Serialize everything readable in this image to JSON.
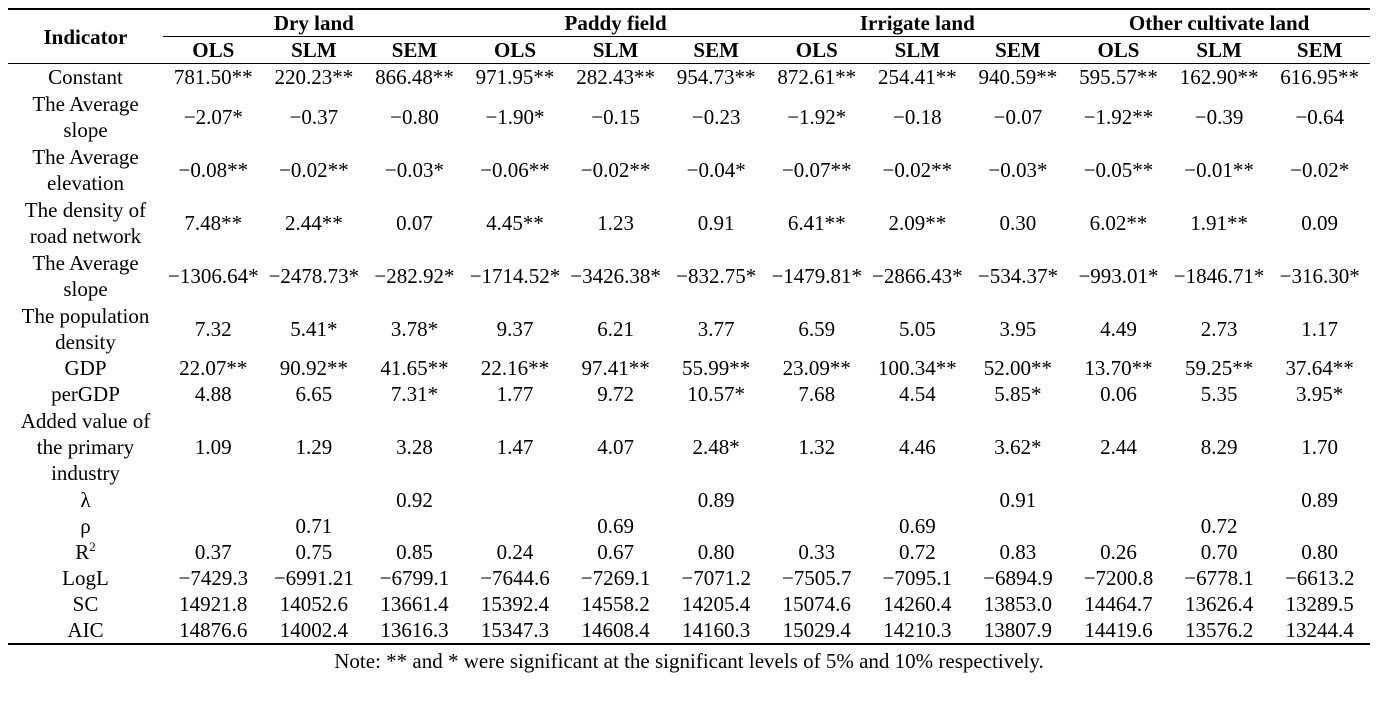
{
  "table": {
    "indicator_header": "Indicator",
    "groups": [
      "Dry land",
      "Paddy field",
      "Irrigate land",
      "Other cultivate land"
    ],
    "methods": [
      "OLS",
      "SLM",
      "SEM"
    ],
    "rows": [
      {
        "label": "Constant",
        "cells": [
          "781.50**",
          "220.23**",
          "866.48**",
          "971.95**",
          "282.43**",
          "954.73**",
          "872.61**",
          "254.41**",
          "940.59**",
          "595.57**",
          "162.90**",
          "616.95**"
        ]
      },
      {
        "label": "The Average slope",
        "cells": [
          "−2.07*",
          "−0.37",
          "−0.80",
          "−1.90*",
          "−0.15",
          "−0.23",
          "−1.92*",
          "−0.18",
          "−0.07",
          "−1.92**",
          "−0.39",
          "−0.64"
        ]
      },
      {
        "label": "The Average elevation",
        "cells": [
          "−0.08**",
          "−0.02**",
          "−0.03*",
          "−0.06**",
          "−0.02**",
          "−0.04*",
          "−0.07**",
          "−0.02**",
          "−0.03*",
          "−0.05**",
          "−0.01**",
          "−0.02*"
        ]
      },
      {
        "label": "The density of road network",
        "cells": [
          "7.48**",
          "2.44**",
          "0.07",
          "4.45**",
          "1.23",
          "0.91",
          "6.41**",
          "2.09**",
          "0.30",
          "6.02**",
          "1.91**",
          "0.09"
        ]
      },
      {
        "label": "The Average slope",
        "cells": [
          "−1306.64*",
          "−2478.73*",
          "−282.92*",
          "−1714.52*",
          "−3426.38*",
          "−832.75*",
          "−1479.81*",
          "−2866.43*",
          "−534.37*",
          "−993.01*",
          "−1846.71*",
          "−316.30*"
        ]
      },
      {
        "label": "The population density",
        "cells": [
          "7.32",
          "5.41*",
          "3.78*",
          "9.37",
          "6.21",
          "3.77",
          "6.59",
          "5.05",
          "3.95",
          "4.49",
          "2.73",
          "1.17"
        ]
      },
      {
        "label": "GDP",
        "cells": [
          "22.07**",
          "90.92**",
          "41.65**",
          "22.16**",
          "97.41**",
          "55.99**",
          "23.09**",
          "100.34**",
          "52.00**",
          "13.70**",
          "59.25**",
          "37.64**"
        ]
      },
      {
        "label": "perGDP",
        "cells": [
          "4.88",
          "6.65",
          "7.31*",
          "1.77",
          "9.72",
          "10.57*",
          "7.68",
          "4.54",
          "5.85*",
          "0.06",
          "5.35",
          "3.95*"
        ]
      },
      {
        "label": "Added value of the primary industry",
        "cells": [
          "1.09",
          "1.29",
          "3.28",
          "1.47",
          "4.07",
          "2.48*",
          "1.32",
          "4.46",
          "3.62*",
          "2.44",
          "8.29",
          "1.70"
        ]
      },
      {
        "label": "λ",
        "cells": [
          "",
          "",
          "0.92",
          "",
          "",
          "0.89",
          "",
          "",
          "0.91",
          "",
          "",
          "0.89"
        ]
      },
      {
        "label": "ρ",
        "cells": [
          "",
          "0.71",
          "",
          "",
          "0.69",
          "",
          "",
          "0.69",
          "",
          "",
          "0.72",
          ""
        ]
      },
      {
        "label": "R2",
        "cells": [
          "0.37",
          "0.75",
          "0.85",
          "0.24",
          "0.67",
          "0.80",
          "0.33",
          "0.72",
          "0.83",
          "0.26",
          "0.70",
          "0.80"
        ]
      },
      {
        "label": "LogL",
        "cells": [
          "−7429.3",
          "−6991.21",
          "−6799.1",
          "−7644.6",
          "−7269.1",
          "−7071.2",
          "−7505.7",
          "−7095.1",
          "−6894.9",
          "−7200.8",
          "−6778.1",
          "−6613.2"
        ]
      },
      {
        "label": "SC",
        "cells": [
          "14921.8",
          "14052.6",
          "13661.4",
          "15392.4",
          "14558.2",
          "14205.4",
          "15074.6",
          "14260.4",
          "13853.0",
          "14464.7",
          "13626.4",
          "13289.5"
        ]
      },
      {
        "label": "AIC",
        "cells": [
          "14876.6",
          "14002.4",
          "13616.3",
          "15347.3",
          "14608.4",
          "14160.3",
          "15029.4",
          "14210.3",
          "13807.9",
          "14419.6",
          "13576.2",
          "13244.4"
        ]
      }
    ],
    "note": "Note: ** and * were significant at the significant levels of 5% and 10% respectively."
  }
}
